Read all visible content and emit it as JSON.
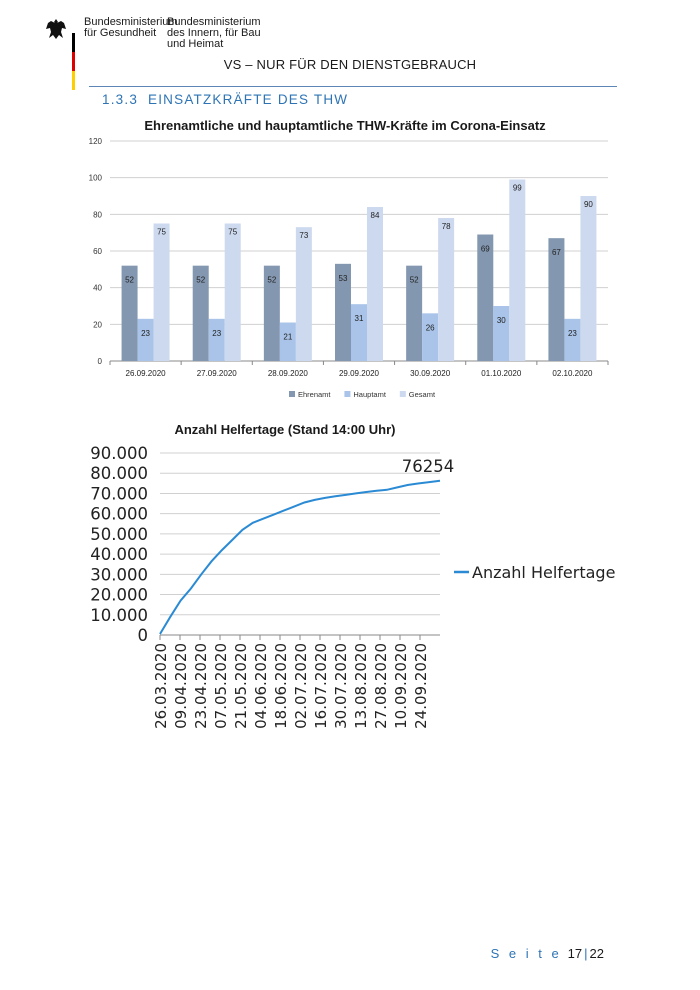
{
  "header": {
    "ministry_1": [
      "Bundesministerium",
      "für Gesundheit"
    ],
    "ministry_2": [
      "Bundesministerium",
      "des Innern, für Bau",
      "und Heimat"
    ],
    "classification": "VS – NUR FÜR DEN DIENSTGEBRAUCH",
    "flag_colors": [
      "#000000",
      "#dd0000",
      "#ffce00"
    ]
  },
  "section": {
    "number": "1.3.3",
    "title": "EINSATZKRÄFTE DES THW"
  },
  "chart_data": [
    {
      "type": "bar",
      "title": "Ehrenamtliche und hauptamtliche THW-Kräfte im Corona-Einsatz",
      "categories": [
        "26.09.2020",
        "27.09.2020",
        "28.09.2020",
        "29.09.2020",
        "30.09.2020",
        "01.10.2020",
        "02.10.2020"
      ],
      "series": [
        {
          "name": "Ehrenamt",
          "values": [
            52,
            52,
            52,
            53,
            52,
            69,
            67
          ],
          "color": "#8497b0"
        },
        {
          "name": "Hauptamt",
          "values": [
            23,
            23,
            21,
            31,
            26,
            30,
            23
          ],
          "color": "#a9c4e8"
        },
        {
          "name": "Gesamt",
          "values": [
            75,
            75,
            73,
            84,
            78,
            99,
            90
          ],
          "color": "#cdd9ef"
        }
      ],
      "ylim": [
        0,
        120
      ],
      "yticks": [
        "0",
        "20",
        "40",
        "60",
        "80",
        "100",
        "120"
      ],
      "grid": true,
      "legend": "bottom"
    },
    {
      "type": "line",
      "title": "Anzahl Helfertage (Stand 14:00 Uhr)",
      "x_ticks": [
        "26.03.2020",
        "09.04.2020",
        "23.04.2020",
        "07.05.2020",
        "21.05.2020",
        "04.06.2020",
        "18.06.2020",
        "02.07.2020",
        "16.07.2020",
        "30.07.2020",
        "13.08.2020",
        "27.08.2020",
        "10.09.2020",
        "24.09.2020"
      ],
      "x_range": [
        "2020-03-26",
        "2020-10-02"
      ],
      "yticks": [
        "0",
        "10.000",
        "20.000",
        "30.000",
        "40.000",
        "50.000",
        "60.000",
        "70.000",
        "80.000",
        "90.000"
      ],
      "ylim": [
        0,
        90000
      ],
      "series": [
        {
          "name": "Anzahl Helfertage",
          "color": "#2a8ad4",
          "x": [
            "2020-03-26",
            "2020-04-02",
            "2020-04-09",
            "2020-04-16",
            "2020-04-23",
            "2020-04-30",
            "2020-05-07",
            "2020-05-14",
            "2020-05-21",
            "2020-05-28",
            "2020-06-04",
            "2020-06-11",
            "2020-06-18",
            "2020-06-25",
            "2020-07-02",
            "2020-07-09",
            "2020-07-16",
            "2020-07-23",
            "2020-07-30",
            "2020-08-06",
            "2020-08-13",
            "2020-08-20",
            "2020-08-27",
            "2020-09-03",
            "2020-09-10",
            "2020-09-17",
            "2020-09-24",
            "2020-10-02"
          ],
          "y": [
            500,
            9000,
            17000,
            23000,
            30000,
            36500,
            42000,
            47000,
            52000,
            55500,
            57500,
            59500,
            61500,
            63500,
            65500,
            66800,
            67800,
            68600,
            69300,
            70000,
            70700,
            71300,
            71800,
            73000,
            74200,
            74900,
            75500,
            76254
          ]
        }
      ],
      "end_label": "76254",
      "grid": true,
      "legend": "right"
    }
  ],
  "footer": {
    "label": "S e i t e",
    "page": "17",
    "total": "22"
  }
}
